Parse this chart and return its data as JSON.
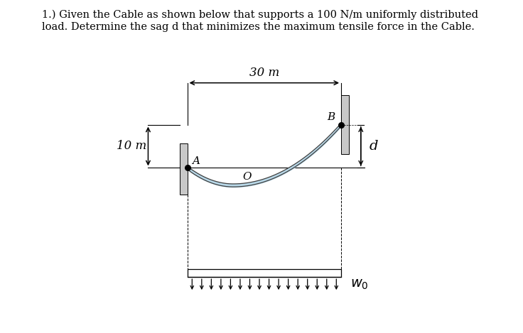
{
  "title_text": "1.) Given the Cable as shown below that supports a 100 N/m uniformly distributed\nload. Determine the sag d that minimizes the maximum tensile force in the Cable.",
  "title_fontsize": 10.5,
  "bg_color": "#ffffff",
  "span_label": "30 m",
  "height_label": "10 m",
  "sag_label": "d",
  "origin_label": "O",
  "point_A_label": "A",
  "point_B_label": "B",
  "load_label": "w_0",
  "wall_color": "#c8c8c8",
  "cable_fill_color": "#b8d8e8",
  "cable_edge_color": "#404040",
  "figsize": [
    7.36,
    4.69
  ],
  "dpi": 100,
  "x_A": 2.5,
  "y_A": 3.2,
  "x_B": 8.2,
  "y_B": 4.8,
  "x_min_cable": 4.2,
  "y_min_cable": 2.55,
  "xlim": [
    0,
    10.5
  ],
  "ylim": [
    -2.8,
    7.2
  ]
}
